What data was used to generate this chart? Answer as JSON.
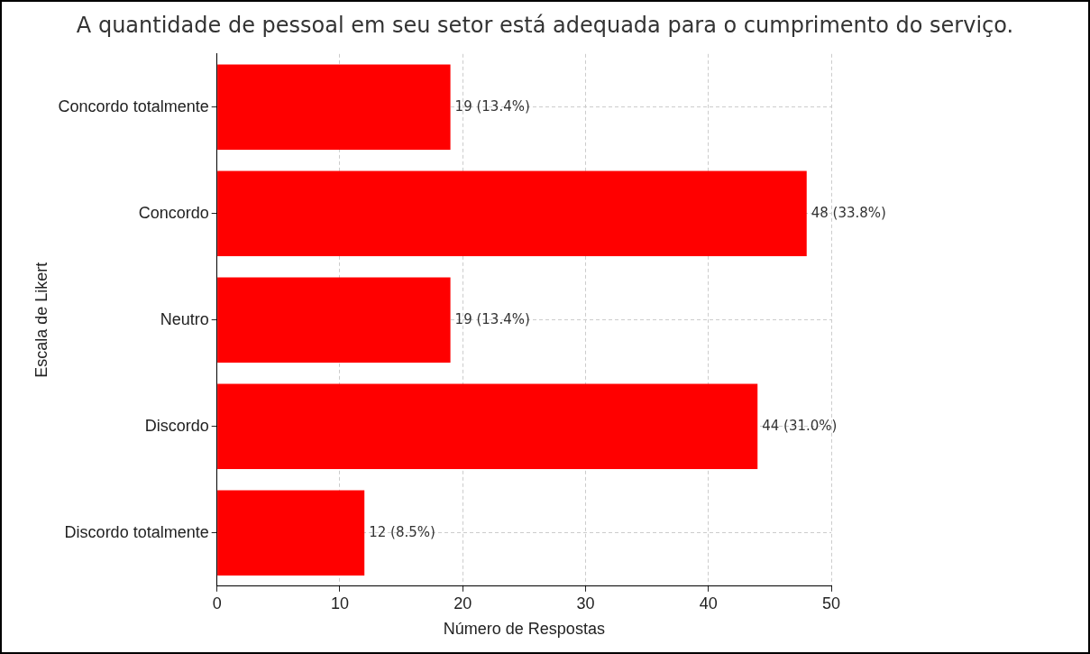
{
  "chart_data": {
    "type": "bar",
    "orientation": "horizontal",
    "title": "A quantidade de pessoal em seu setor está adequada para o cumprimento do serviço.",
    "xlabel": "Número de Respostas",
    "ylabel": "Escala de Likert",
    "categories": [
      "Concordo totalmente",
      "Concordo",
      "Neutro",
      "Discordo",
      "Discordo totalmente"
    ],
    "values": [
      19,
      48,
      19,
      44,
      12
    ],
    "value_labels": [
      "19 (13.4%)",
      "48 (33.8%)",
      "19 (13.4%)",
      "44 (31.0%)",
      "12 (8.5%)"
    ],
    "color": "#ff0000",
    "xlim": [
      0,
      50
    ],
    "xticks": [
      0,
      10,
      20,
      30,
      40,
      50
    ],
    "grid": true
  }
}
